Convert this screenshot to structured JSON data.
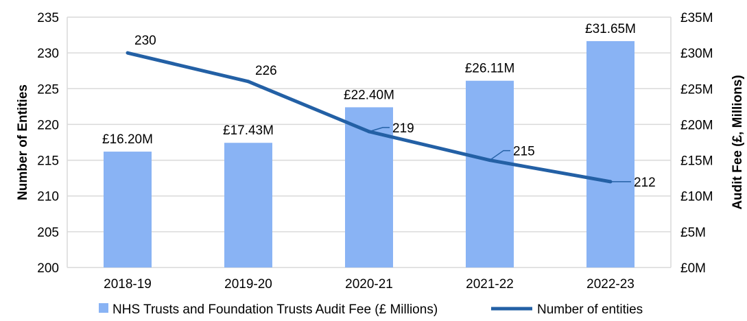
{
  "chart_data": {
    "type": "bar+line",
    "categories": [
      "2018-19",
      "2019-20",
      "2020-21",
      "2021-22",
      "2022-23"
    ],
    "series": [
      {
        "name": "NHS Trusts and Foundation Trusts Audit Fee (£ Millions)",
        "type": "bar",
        "axis": "right",
        "values": [
          16.2,
          17.43,
          22.4,
          26.11,
          31.65
        ],
        "labels": [
          "£16.20M",
          "£17.43M",
          "£22.40M",
          "£26.11M",
          "£31.65M"
        ],
        "color": "#89B3F4"
      },
      {
        "name": "Number of entities",
        "type": "line",
        "axis": "left",
        "values": [
          230,
          226,
          219,
          215,
          212
        ],
        "labels": [
          "230",
          "226",
          "219",
          "215",
          "212"
        ],
        "color": "#2360A5"
      }
    ],
    "left_axis": {
      "label": "Number of Entities",
      "ylim": [
        200,
        235
      ],
      "ticks": [
        "200",
        "205",
        "210",
        "215",
        "220",
        "225",
        "230",
        "235"
      ]
    },
    "right_axis": {
      "label": "Audit Fee (£, Millions)",
      "ylim": [
        0,
        35
      ],
      "ticks": [
        "£0M",
        "£5M",
        "£10M",
        "£15M",
        "£20M",
        "£25M",
        "£30M",
        "£35M"
      ]
    },
    "grid": true,
    "legend": "bottom"
  }
}
